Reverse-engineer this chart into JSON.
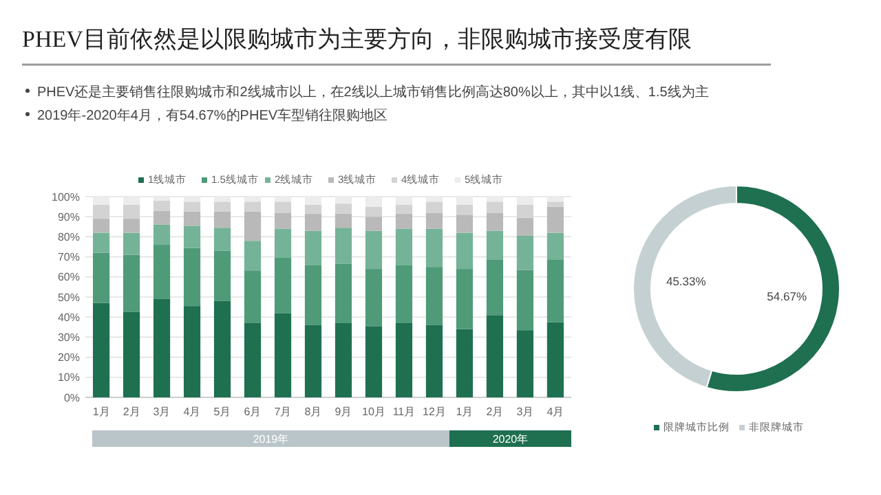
{
  "chart_data": [
    {
      "type": "bar",
      "title": "PHEV目前依然是以限购城市为主要方向，非限购城市接受度有限",
      "stacked": true,
      "categories": [
        "1月",
        "2月",
        "3月",
        "4月",
        "5月",
        "6月",
        "7月",
        "8月",
        "9月",
        "10月",
        "11月",
        "12月",
        "1月",
        "2月",
        "3月",
        "4月"
      ],
      "series": [
        {
          "name": "1线城市",
          "color": "#1e7050",
          "values": [
            47,
            42.5,
            49,
            45.5,
            48,
            37,
            42,
            36,
            37,
            35.5,
            37,
            36,
            34,
            41,
            33.5,
            37.5
          ]
        },
        {
          "name": "1.5线城市",
          "color": "#4f9a78",
          "values": [
            25,
            28.5,
            27,
            29,
            25,
            26,
            27.5,
            30,
            29.5,
            28.5,
            29,
            29,
            30,
            27.5,
            30,
            31
          ]
        },
        {
          "name": "2线城市",
          "color": "#74b397",
          "values": [
            10,
            11,
            10,
            11,
            11.5,
            15,
            14.5,
            17,
            18,
            19,
            18,
            19,
            18,
            14.5,
            17,
            13.5
          ]
        },
        {
          "name": "3线城市",
          "color": "#b9b9b9",
          "values": [
            7,
            7,
            7,
            7,
            8,
            14.5,
            8,
            8.5,
            7,
            7,
            7.5,
            8,
            9,
            9,
            9,
            13
          ]
        },
        {
          "name": "4线城市",
          "color": "#d3d3d3",
          "values": [
            7,
            7,
            5,
            5,
            5,
            5,
            5.5,
            4.5,
            5,
            5,
            4.5,
            5.5,
            5,
            5.5,
            6.5,
            2.5
          ]
        },
        {
          "name": "5线城市",
          "color": "#ececec",
          "values": [
            4,
            4,
            2,
            2.5,
            2.5,
            2.5,
            2.5,
            4,
            3.5,
            5,
            4,
            2.5,
            4,
            2.5,
            4,
            2.5
          ]
        }
      ],
      "ylim": [
        0,
        100
      ],
      "yticks": [
        {
          "value": 0,
          "label": "0%"
        },
        {
          "value": 10,
          "label": "10%"
        },
        {
          "value": 20,
          "label": "20%"
        },
        {
          "value": 30,
          "label": "30%"
        },
        {
          "value": 40,
          "label": "40%"
        },
        {
          "value": 50,
          "label": "50%"
        },
        {
          "value": 60,
          "label": "60%"
        },
        {
          "value": 70,
          "label": "70%"
        },
        {
          "value": 80,
          "label": "80%"
        },
        {
          "value": 90,
          "label": "90%"
        },
        {
          "value": 100,
          "label": "100%"
        }
      ],
      "grid": "y",
      "legend": "top",
      "annotations": [
        "PHEV还是主要销售往限购城市和2线城市以上，在2线以上城市销售比例高达80%以上，其中以1线、1.5线为主",
        "2019年-2020年4月，有54.67%的PHEV车型销往限购地区",
        "2019年",
        "2020年"
      ]
    },
    {
      "type": "donut",
      "categories": [
        "限牌城市比例",
        "非限牌城市"
      ],
      "values": [
        54.67,
        45.33
      ],
      "colors": [
        "#1e7050",
        "#c5d0d3"
      ],
      "value_labels": [
        "54.67%",
        "45.33%"
      ],
      "legend": "bottom"
    }
  ]
}
